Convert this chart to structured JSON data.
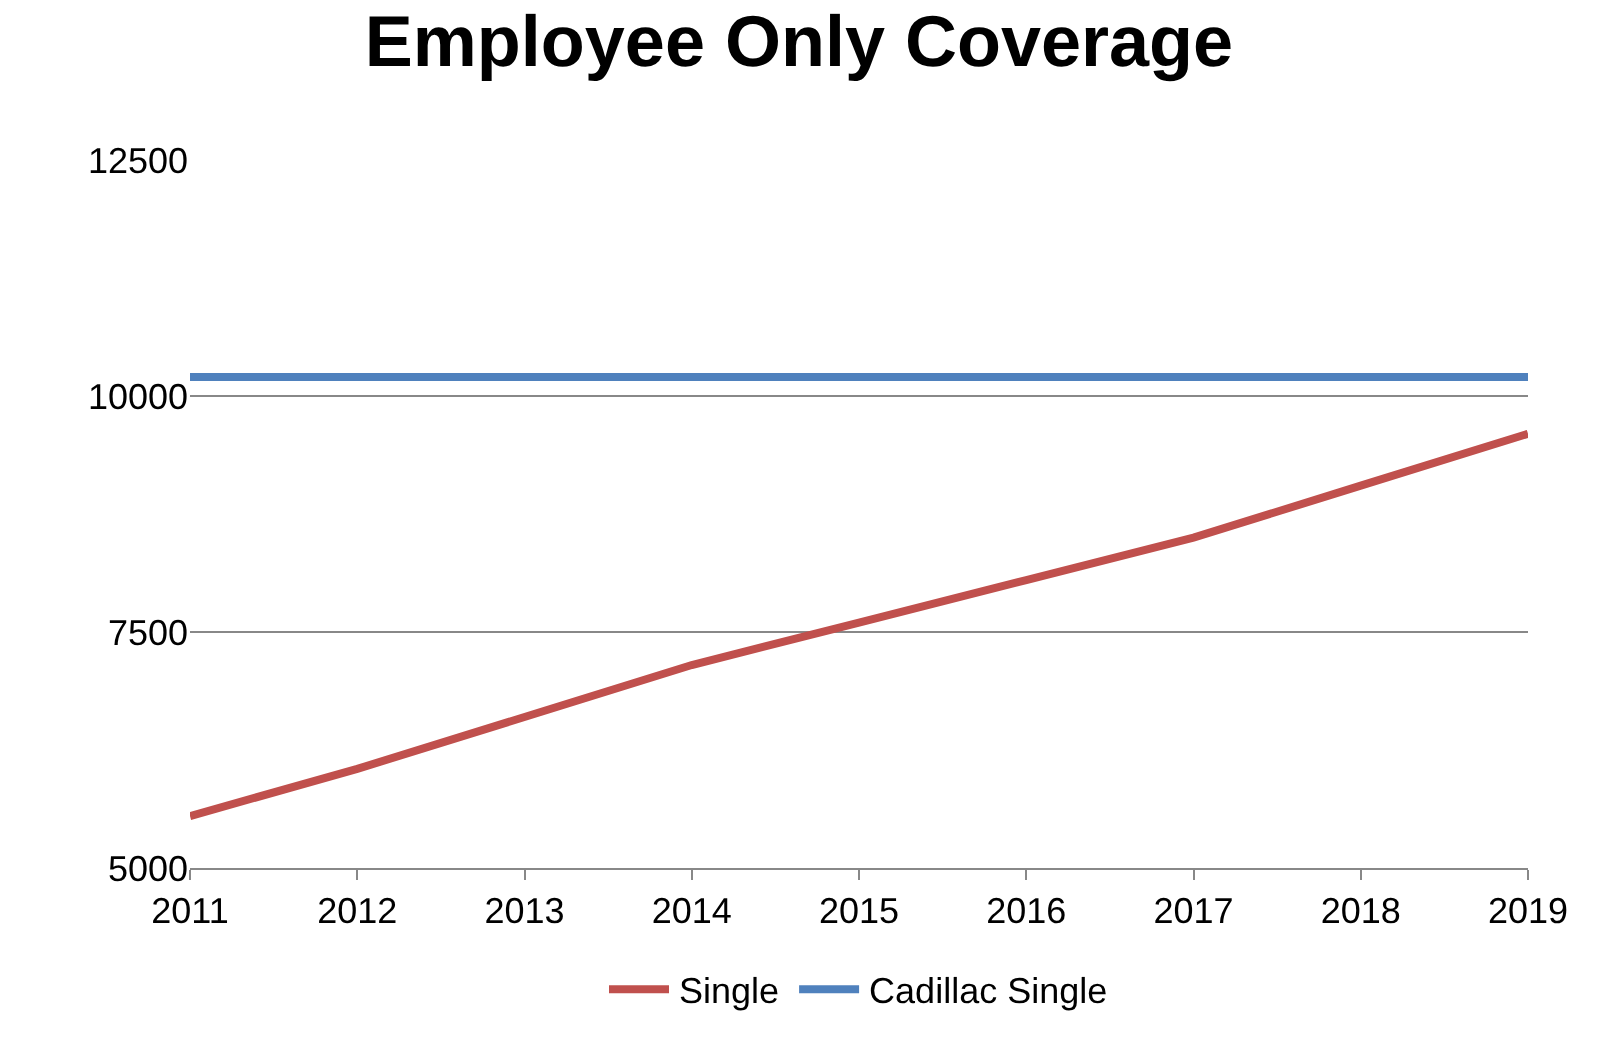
{
  "chart_data": {
    "type": "line",
    "title": "Employee Only Coverage",
    "categories": [
      "2011",
      "2012",
      "2013",
      "2014",
      "2015",
      "2016",
      "2017",
      "2018",
      "2019"
    ],
    "series": [
      {
        "name": "Single",
        "color": "#c0504d",
        "values": [
          5550,
          6050,
          6600,
          7150,
          7600,
          8050,
          8500,
          9050,
          9600
        ]
      },
      {
        "name": "Cadillac Single",
        "color": "#4f81bd",
        "values": [
          10200,
          10200,
          10200,
          10200,
          10200,
          10200,
          10200,
          10200,
          10200
        ]
      }
    ],
    "ylim": [
      5000,
      12500
    ],
    "yticks": [
      5000,
      7500,
      10000,
      12500
    ],
    "grid": "y",
    "legend": "bottom",
    "marker": "none",
    "line_style": "solid"
  }
}
